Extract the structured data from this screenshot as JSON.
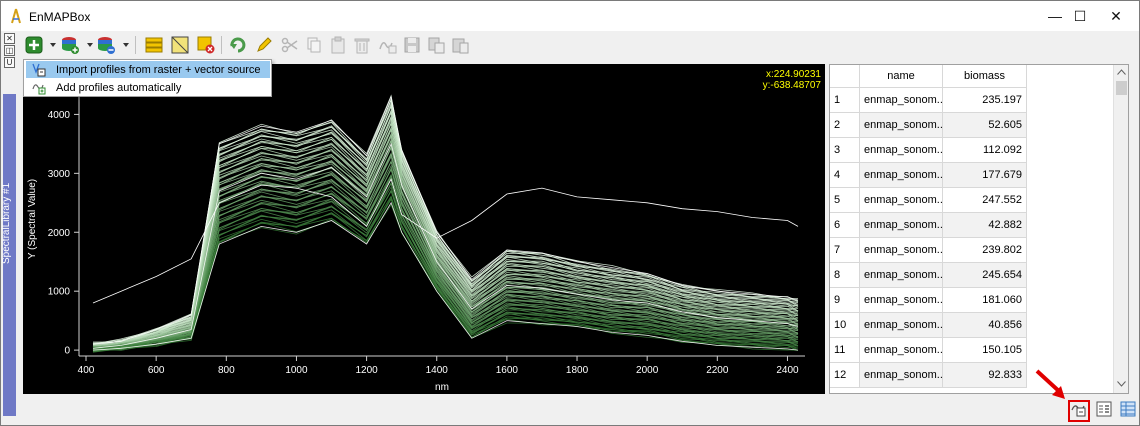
{
  "window": {
    "title": "EnMAPBox",
    "controls": {
      "minimize": "—",
      "maximize": "☐",
      "close": "✕"
    }
  },
  "dock": {
    "tab_label": "SpectralLibrary #1",
    "buttons": [
      "✕",
      "◫",
      "U"
    ]
  },
  "toolbar": {
    "icons": [
      "add-profile-icon",
      "add-layer-icon",
      "remove-layer-icon",
      "list-icon",
      "select-icon",
      "deselect-icon",
      "reload-icon",
      "edit-icon",
      "cut-icon",
      "copy-icon",
      "paste-icon",
      "delete-icon",
      "spectral-icon",
      "save-icon",
      "copy-profiles-icon",
      "paste-profiles-icon"
    ]
  },
  "menu": {
    "items": [
      {
        "label": "Import profiles from raster + vector source",
        "selected": true
      },
      {
        "label": "Add profiles automatically",
        "selected": false
      }
    ]
  },
  "plot": {
    "coords": {
      "x": "x:224.90231",
      "y": "y:-638.48707"
    },
    "xlabel": "nm",
    "ylabel": "Y (Spectral Value)",
    "xticks": [
      "400",
      "600",
      "800",
      "1000",
      "1200",
      "1400",
      "1600",
      "1800",
      "2000",
      "2200",
      "2400"
    ],
    "yticks": [
      "0",
      "1000",
      "2000",
      "3000",
      "4000"
    ]
  },
  "chart_data": {
    "type": "line",
    "xlabel": "nm",
    "ylabel": "Y (Spectral Value)",
    "xlim": [
      380,
      2450
    ],
    "ylim": [
      -100,
      4550
    ],
    "grid": false,
    "background": "#000000",
    "series_colors": [
      "#ffffff",
      "#3da33d"
    ],
    "series": [
      {
        "x": [
          420,
          500,
          600,
          700,
          780,
          900,
          1000,
          1100,
          1200,
          1270,
          1300,
          1400,
          1500,
          1600,
          1700,
          1800,
          1900,
          2000,
          2100,
          2200,
          2300,
          2400,
          2430
        ],
        "values": [
          800,
          1000,
          1250,
          1550,
          2500,
          2800,
          2750,
          2600,
          2100,
          2900,
          2300,
          1900,
          2200,
          2650,
          2750,
          2600,
          2550,
          2500,
          2400,
          2350,
          2250,
          2200,
          2100
        ]
      },
      {
        "x": [
          420,
          500,
          600,
          700,
          780,
          900,
          1000,
          1100,
          1200,
          1270,
          1300,
          1400,
          1500,
          1600,
          1700,
          1800,
          1900,
          2000,
          2100,
          2200,
          2300,
          2400,
          2430
        ],
        "values": [
          100,
          150,
          350,
          600,
          3500,
          3800,
          3700,
          3900,
          3300,
          4300,
          3400,
          2000,
          1200,
          1700,
          1650,
          1500,
          1400,
          1300,
          1100,
          1000,
          950,
          900,
          850
        ]
      },
      {
        "x": [
          420,
          500,
          600,
          700,
          780,
          900,
          1000,
          1100,
          1200,
          1270,
          1300,
          1400,
          1500,
          1600,
          1700,
          1800,
          1900,
          2000,
          2100,
          2200,
          2300,
          2400,
          2430
        ],
        "values": [
          30,
          80,
          200,
          350,
          2700,
          3000,
          2900,
          3100,
          2600,
          3500,
          2800,
          1500,
          700,
          1100,
          1050,
          950,
          850,
          800,
          650,
          550,
          500,
          450,
          400
        ]
      },
      {
        "x": [
          420,
          500,
          600,
          700,
          780,
          900,
          1000,
          1100,
          1200,
          1270,
          1300,
          1400,
          1500,
          1600,
          1700,
          1800,
          1900,
          2000,
          2100,
          2200,
          2300,
          2400,
          2430
        ],
        "values": [
          0,
          30,
          100,
          200,
          1800,
          2100,
          2000,
          2200,
          1800,
          2500,
          2000,
          1000,
          200,
          500,
          450,
          400,
          300,
          250,
          150,
          80,
          50,
          20,
          0
        ]
      }
    ]
  },
  "table": {
    "columns": [
      "name",
      "biomass"
    ],
    "rows": [
      {
        "n": "1",
        "name": "enmap_sonom...",
        "biomass": "235.197"
      },
      {
        "n": "2",
        "name": "enmap_sonom...",
        "biomass": "52.605"
      },
      {
        "n": "3",
        "name": "enmap_sonom...",
        "biomass": "112.092"
      },
      {
        "n": "4",
        "name": "enmap_sonom...",
        "biomass": "177.679"
      },
      {
        "n": "5",
        "name": "enmap_sonom...",
        "biomass": "247.552"
      },
      {
        "n": "6",
        "name": "enmap_sonom...",
        "biomass": "42.882"
      },
      {
        "n": "7",
        "name": "enmap_sonom...",
        "biomass": "239.802"
      },
      {
        "n": "8",
        "name": "enmap_sonom...",
        "biomass": "245.654"
      },
      {
        "n": "9",
        "name": "enmap_sonom...",
        "biomass": "181.060"
      },
      {
        "n": "10",
        "name": "enmap_sonom...",
        "biomass": "40.856"
      },
      {
        "n": "11",
        "name": "enmap_sonom...",
        "biomass": "150.105"
      },
      {
        "n": "12",
        "name": "enmap_sonom...",
        "biomass": "92.833"
      }
    ]
  },
  "statusbar": {
    "icons": [
      "profile-source-icon",
      "form-view-icon",
      "table-view-icon"
    ]
  }
}
